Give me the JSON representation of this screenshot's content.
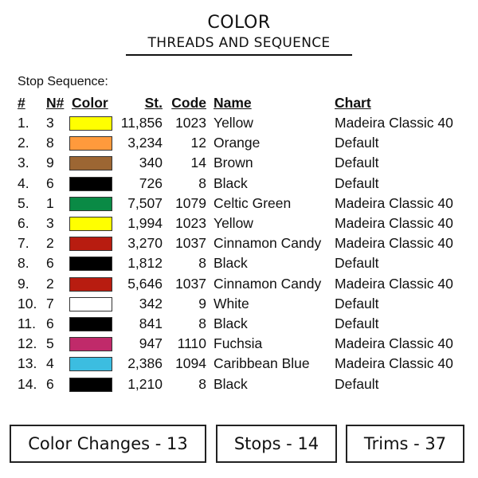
{
  "title": "COLOR",
  "subtitle": "THREADS AND SEQUENCE",
  "caption": "Stop Sequence:",
  "headers": {
    "num": "#",
    "n": "N#",
    "color": "Color",
    "st": "St.",
    "code": "Code",
    "name": "Name",
    "chart": "Chart"
  },
  "rows": [
    {
      "num": "1.",
      "n": "3",
      "color": "#ffff00",
      "st": "11,856",
      "code": "1023",
      "name": "Yellow",
      "chart": "Madeira Classic 40"
    },
    {
      "num": "2.",
      "n": "8",
      "color": "#ff9a3c",
      "st": "3,234",
      "code": "12",
      "name": "Orange",
      "chart": "Default"
    },
    {
      "num": "3.",
      "n": "9",
      "color": "#9c6633",
      "st": "340",
      "code": "14",
      "name": "Brown",
      "chart": "Default"
    },
    {
      "num": "4.",
      "n": "6",
      "color": "#000000",
      "st": "726",
      "code": "8",
      "name": "Black",
      "chart": "Default"
    },
    {
      "num": "5.",
      "n": "1",
      "color": "#0a8a45",
      "st": "7,507",
      "code": "1079",
      "name": "Celtic Green",
      "chart": "Madeira Classic 40"
    },
    {
      "num": "6.",
      "n": "3",
      "color": "#ffff00",
      "st": "1,994",
      "code": "1023",
      "name": "Yellow",
      "chart": "Madeira Classic 40"
    },
    {
      "num": "7.",
      "n": "2",
      "color": "#b81c10",
      "st": "3,270",
      "code": "1037",
      "name": "Cinnamon Candy",
      "chart": "Madeira Classic 40"
    },
    {
      "num": "8.",
      "n": "6",
      "color": "#000000",
      "st": "1,812",
      "code": "8",
      "name": "Black",
      "chart": "Default"
    },
    {
      "num": "9.",
      "n": "2",
      "color": "#b81c10",
      "st": "5,646",
      "code": "1037",
      "name": "Cinnamon Candy",
      "chart": "Madeira Classic 40"
    },
    {
      "num": "10.",
      "n": "7",
      "color": "#ffffff",
      "st": "342",
      "code": "9",
      "name": "White",
      "chart": "Default"
    },
    {
      "num": "11.",
      "n": "6",
      "color": "#000000",
      "st": "841",
      "code": "8",
      "name": "Black",
      "chart": "Default"
    },
    {
      "num": "12.",
      "n": "5",
      "color": "#c02a6a",
      "st": "947",
      "code": "1110",
      "name": "Fuchsia",
      "chart": "Madeira Classic 40"
    },
    {
      "num": "13.",
      "n": "4",
      "color": "#3cbde0",
      "st": "2,386",
      "code": "1094",
      "name": "Caribbean Blue",
      "chart": "Madeira Classic 40"
    },
    {
      "num": "14.",
      "n": "6",
      "color": "#000000",
      "st": "1,210",
      "code": "8",
      "name": "Black",
      "chart": "Default"
    }
  ],
  "summary": {
    "color_changes": "Color Changes - 13",
    "stops": "Stops - 14",
    "trims": "Trims - 37"
  }
}
